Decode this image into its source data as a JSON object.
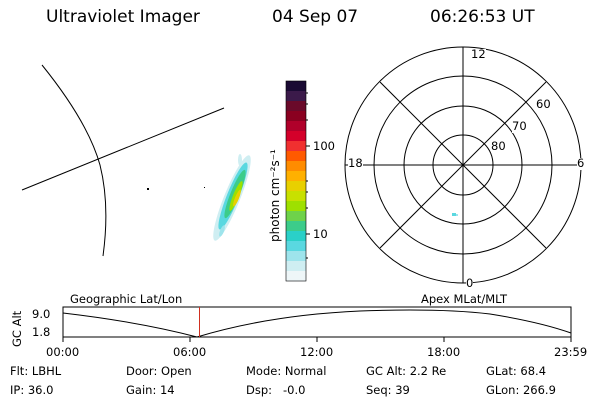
{
  "header": {
    "instrument": "Ultraviolet Imager",
    "date": "04 Sep 07",
    "time": "06:26:53 UT"
  },
  "colorbar": {
    "units_label": "photon cm⁻²s⁻¹",
    "ticks": [
      "100",
      "10"
    ],
    "colors_top_to_bottom": [
      "#1a0a33",
      "#3b1a4a",
      "#6a0a2a",
      "#8a0020",
      "#b0002a",
      "#d4002a",
      "#f03030",
      "#ff5a00",
      "#ff8c00",
      "#ffb000",
      "#e8d000",
      "#c8e000",
      "#9ee000",
      "#6ed24a",
      "#3ccc8a",
      "#2ad0c8",
      "#5ad8e0",
      "#9ee4ec",
      "#cfeef2",
      "#eef6f8"
    ]
  },
  "polar_plot": {
    "mlt_labels": {
      "top": "12",
      "left": "18",
      "right": "6",
      "bottom": "0"
    },
    "lat_labels": [
      "60",
      "70",
      "80"
    ]
  },
  "timeline": {
    "left_title": "Geographic Lat/Lon",
    "right_title": "Apex  MLat/MLT",
    "y_axis_label": "GC Alt",
    "y_ticks": [
      "9.0",
      "1.8"
    ],
    "x_ticks": [
      "00:00",
      "06:00",
      "12:00",
      "18:00",
      "23:59"
    ],
    "current_time_hours": 6.45
  },
  "info": {
    "filter": "Flt: LBHL",
    "door": "Door: Open",
    "mode": "Mode: Normal",
    "gc_alt": "GC Alt: 2.2 Re",
    "glat": "GLat:  68.4",
    "ip": "IP: 36.0",
    "gain": "Gain: 14",
    "dsp": "Dsp:   -0.0",
    "seq": "Seq: 39",
    "glon": "GLon: 266.9"
  }
}
